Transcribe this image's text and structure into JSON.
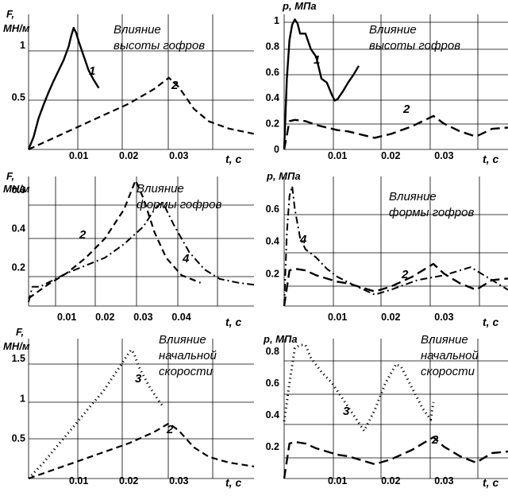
{
  "chart_data": [
    {
      "id": "p1",
      "type": "line",
      "title": [
        "Влияние",
        "высоты гофров"
      ],
      "ylabel": [
        "F,",
        "МН/м"
      ],
      "xlabel": "t, с",
      "xlim": [
        0,
        0.045
      ],
      "ylim": [
        0,
        1.3
      ],
      "xticks": [
        0.01,
        0.02,
        0.03
      ],
      "xtick_labels": [
        "0.01",
        "0.02",
        "0.03"
      ],
      "yticks": [
        0.5,
        1
      ],
      "ytick_labels": [
        "0.5",
        "1"
      ],
      "series": [
        {
          "name": "1",
          "style": "solid",
          "x": [
            0,
            0.001,
            0.002,
            0.003,
            0.004,
            0.005,
            0.006,
            0.007,
            0.008,
            0.0085,
            0.009,
            0.0095,
            0.01,
            0.011,
            0.012,
            0.013,
            0.014
          ],
          "y": [
            0,
            0.12,
            0.3,
            0.43,
            0.55,
            0.66,
            0.76,
            0.86,
            0.99,
            1.09,
            1.17,
            1.12,
            1.04,
            0.9,
            0.76,
            0.67,
            0.59
          ]
        },
        {
          "name": "2",
          "style": "dash",
          "x": [
            0,
            0.005,
            0.01,
            0.015,
            0.02,
            0.025,
            0.028,
            0.03,
            0.033,
            0.036,
            0.04,
            0.045
          ],
          "y": [
            0,
            0.11,
            0.22,
            0.33,
            0.44,
            0.58,
            0.69,
            0.6,
            0.39,
            0.27,
            0.2,
            0.15
          ]
        }
      ]
    },
    {
      "id": "p2",
      "type": "line",
      "title": [
        "Влияние",
        "высоты гофров"
      ],
      "ylabel": [
        "p, МПа"
      ],
      "xlabel": "t, с",
      "xlim": [
        0,
        0.042
      ],
      "ylim": [
        0,
        1.05
      ],
      "xticks": [
        0.01,
        0.02,
        0.03
      ],
      "xtick_labels": [
        "0.01",
        "0.02",
        "0.03"
      ],
      "yticks": [
        0,
        0.2,
        0.4,
        0.6,
        0.8,
        1
      ],
      "ytick_labels": [
        "0",
        "0.2",
        "0.4",
        "0.6",
        "0.8",
        "1"
      ],
      "series": [
        {
          "name": "1",
          "style": "solid",
          "x": [
            0,
            0.0005,
            0.001,
            0.0015,
            0.002,
            0.0025,
            0.003,
            0.004,
            0.005,
            0.006,
            0.007,
            0.008,
            0.009,
            0.0095,
            0.01,
            0.011,
            0.012,
            0.013,
            0.014
          ],
          "y": [
            0,
            0.55,
            0.85,
            0.97,
            1.01,
            0.98,
            0.9,
            0.9,
            0.78,
            0.72,
            0.55,
            0.52,
            0.42,
            0.38,
            0.39,
            0.45,
            0.52,
            0.58,
            0.65
          ]
        },
        {
          "name": "2",
          "style": "longdash",
          "x": [
            0,
            0.001,
            0.002,
            0.004,
            0.006,
            0.008,
            0.01,
            0.012,
            0.014,
            0.017,
            0.02,
            0.024,
            0.028,
            0.03,
            0.033,
            0.036,
            0.039,
            0.042
          ],
          "y": [
            0,
            0.22,
            0.23,
            0.22,
            0.19,
            0.17,
            0.15,
            0.14,
            0.12,
            0.09,
            0.12,
            0.18,
            0.26,
            0.2,
            0.14,
            0.1,
            0.16,
            0.17
          ]
        }
      ]
    },
    {
      "id": "p3",
      "type": "line",
      "title": [
        "Влияние",
        "формы гофров"
      ],
      "ylabel": [
        "F,",
        "МН/м"
      ],
      "xlabel": "t, с",
      "xlim": [
        0,
        0.059
      ],
      "ylim": [
        0,
        0.67
      ],
      "xticks": [
        0.01,
        0.02,
        0.03,
        0.04
      ],
      "xtick_labels": [
        "0.01",
        "0.02",
        "0.03",
        "0.04"
      ],
      "yticks": [
        0.2,
        0.4,
        0.6
      ],
      "ytick_labels": [
        "0.2",
        "0.4",
        "0.6"
      ],
      "series": [
        {
          "name": "2",
          "style": "dash",
          "x": [
            0,
            0.005,
            0.01,
            0.015,
            0.02,
            0.025,
            0.028,
            0.03,
            0.033,
            0.036,
            0.04,
            0.045
          ],
          "y": [
            0.04,
            0.11,
            0.17,
            0.25,
            0.35,
            0.5,
            0.65,
            0.56,
            0.38,
            0.25,
            0.16,
            0.12
          ]
        },
        {
          "name": "4",
          "style": "dashdot",
          "x": [
            0,
            0.001,
            0.003,
            0.005,
            0.01,
            0.015,
            0.02,
            0.025,
            0.03,
            0.033,
            0.035,
            0.038,
            0.042,
            0.046,
            0.05,
            0.055,
            0.059
          ],
          "y": [
            0.02,
            0.1,
            0.1,
            0.12,
            0.17,
            0.21,
            0.25,
            0.32,
            0.41,
            0.5,
            0.54,
            0.42,
            0.28,
            0.19,
            0.14,
            0.12,
            0.11
          ]
        }
      ]
    },
    {
      "id": "p4",
      "type": "line",
      "title": [
        "Влияние",
        "формы гофров"
      ],
      "ylabel": [
        "p, МПа"
      ],
      "xlabel": "t, с",
      "xlim": [
        0,
        0.042
      ],
      "ylim": [
        0,
        0.8
      ],
      "xticks": [
        0.01,
        0.02,
        0.03
      ],
      "xtick_labels": [
        "0.01",
        "0.02",
        "0.03"
      ],
      "yticks": [
        0.2,
        0.4,
        0.6
      ],
      "ytick_labels": [
        "0.2",
        "0.4",
        "0.6"
      ],
      "series": [
        {
          "name": "4",
          "style": "dashdot",
          "x": [
            0,
            0.0005,
            0.001,
            0.0015,
            0.002,
            0.003,
            0.004,
            0.006,
            0.008,
            0.01,
            0.013,
            0.017,
            0.02,
            0.025,
            0.03,
            0.035,
            0.039,
            0.042
          ],
          "y": [
            0,
            0.45,
            0.68,
            0.74,
            0.6,
            0.42,
            0.35,
            0.3,
            0.23,
            0.18,
            0.13,
            0.07,
            0.1,
            0.16,
            0.19,
            0.24,
            0.16,
            0.1
          ]
        },
        {
          "name": "2",
          "style": "longdash",
          "x": [
            0,
            0.001,
            0.002,
            0.004,
            0.006,
            0.008,
            0.01,
            0.012,
            0.014,
            0.017,
            0.02,
            0.024,
            0.028,
            0.03,
            0.033,
            0.036,
            0.039,
            0.042
          ],
          "y": [
            0,
            0.22,
            0.23,
            0.22,
            0.19,
            0.17,
            0.15,
            0.14,
            0.12,
            0.09,
            0.12,
            0.18,
            0.26,
            0.2,
            0.14,
            0.1,
            0.16,
            0.17
          ]
        }
      ]
    },
    {
      "id": "p5",
      "type": "line",
      "title": [
        "Влияние",
        "начальной",
        "скорости"
      ],
      "ylabel": [
        "F,",
        "МН/м"
      ],
      "xlabel": "t, с",
      "xlim": [
        0,
        0.045
      ],
      "ylim": [
        0,
        1.75
      ],
      "xticks": [
        0.01,
        0.02,
        0.03
      ],
      "xtick_labels": [
        "0.01",
        "0.02",
        "0.03"
      ],
      "yticks": [
        0.5,
        1,
        1.5
      ],
      "ytick_labels": [
        "0.5",
        "1",
        "1.5"
      ],
      "series": [
        {
          "name": "3",
          "style": "dotted",
          "x": [
            0,
            0.003,
            0.006,
            0.009,
            0.012,
            0.015,
            0.018,
            0.02,
            0.0205,
            0.021,
            0.022,
            0.024,
            0.026,
            0.027
          ],
          "y": [
            0,
            0.2,
            0.43,
            0.65,
            0.88,
            1.1,
            1.38,
            1.57,
            1.61,
            1.57,
            1.4,
            1.16,
            0.97,
            0.89
          ]
        },
        {
          "name": "2",
          "style": "dash",
          "x": [
            0,
            0.005,
            0.01,
            0.015,
            0.02,
            0.025,
            0.028,
            0.03,
            0.033,
            0.036,
            0.04,
            0.045
          ],
          "y": [
            0,
            0.11,
            0.22,
            0.33,
            0.44,
            0.58,
            0.69,
            0.6,
            0.39,
            0.27,
            0.2,
            0.15
          ]
        }
      ]
    },
    {
      "id": "p6",
      "type": "line",
      "title": [
        "Влияние",
        "начальной",
        "скорости"
      ],
      "ylabel": [
        "p, МПа"
      ],
      "xlabel": "t, с",
      "xlim": [
        0,
        0.042
      ],
      "ylim": [
        0,
        0.88
      ],
      "xticks": [
        0.01,
        0.02,
        0.03
      ],
      "xtick_labels": [
        "0.01",
        "0.02",
        "0.03"
      ],
      "yticks": [
        0.2,
        0.4,
        0.6,
        0.8
      ],
      "ytick_labels": [
        "0.2",
        "0.4",
        "0.6",
        "0.8"
      ],
      "series": [
        {
          "name": "3",
          "style": "dotted",
          "x": [
            0,
            0.001,
            0.002,
            0.003,
            0.004,
            0.005,
            0.007,
            0.009,
            0.011,
            0.013,
            0.015,
            0.017,
            0.019,
            0.021,
            0.022,
            0.024,
            0.026,
            0.0275,
            0.028
          ],
          "y": [
            0.36,
            0.6,
            0.82,
            0.84,
            0.84,
            0.76,
            0.67,
            0.6,
            0.5,
            0.4,
            0.3,
            0.43,
            0.6,
            0.72,
            0.7,
            0.57,
            0.44,
            0.37,
            0.48
          ]
        },
        {
          "name": "2",
          "style": "longdash",
          "x": [
            0,
            0.001,
            0.002,
            0.004,
            0.006,
            0.008,
            0.01,
            0.012,
            0.014,
            0.017,
            0.02,
            0.024,
            0.028,
            0.03,
            0.033,
            0.036,
            0.039,
            0.042
          ],
          "y": [
            0,
            0.22,
            0.23,
            0.22,
            0.19,
            0.17,
            0.15,
            0.14,
            0.12,
            0.09,
            0.12,
            0.18,
            0.26,
            0.2,
            0.14,
            0.1,
            0.16,
            0.17
          ]
        }
      ]
    }
  ]
}
